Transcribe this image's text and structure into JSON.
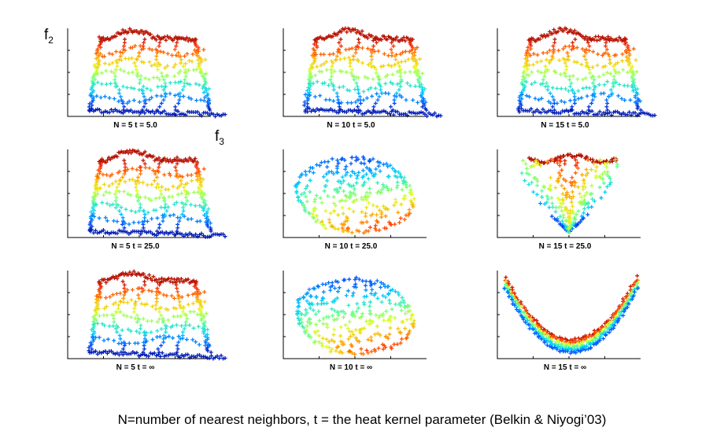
{
  "figure": {
    "ylabel": {
      "base": "f",
      "sub": "2"
    },
    "xlabel": {
      "base": "f",
      "sub": "3"
    },
    "caption": "N=number of nearest neighbors, t = the heat kernel parameter (Belkin & Niyogi’03)"
  },
  "chart_data": [
    {
      "type": "scatter",
      "label": "N = 5     t = 5.0",
      "N": 5,
      "t": "5.0",
      "shape": "grid-lowN"
    },
    {
      "type": "scatter",
      "label": "N = 10    t = 5.0",
      "N": 10,
      "t": "5.0",
      "shape": "grid-lowN"
    },
    {
      "type": "scatter",
      "label": "N = 15    t = 5.0",
      "N": 15,
      "t": "5.0",
      "shape": "grid-lowN"
    },
    {
      "type": "scatter",
      "label": "N = 5     t = 25.0",
      "N": 5,
      "t": "25.0",
      "shape": "grid-lowN"
    },
    {
      "type": "scatter",
      "label": "N = 10    t = 25.0",
      "N": 10,
      "t": "25.0",
      "shape": "blob-midN"
    },
    {
      "type": "scatter",
      "label": "N = 15    t = 25.0",
      "N": 15,
      "t": "25.0",
      "shape": "heart-highN"
    },
    {
      "type": "scatter",
      "label": "N = 5     t = ∞",
      "N": 5,
      "t": "∞",
      "shape": "grid-lowN"
    },
    {
      "type": "scatter",
      "label": "N = 10    t = ∞",
      "N": 10,
      "t": "∞",
      "shape": "blob-midN"
    },
    {
      "type": "scatter",
      "label": "N = 15    t = ∞",
      "N": 15,
      "t": "∞",
      "shape": "arc-highN"
    }
  ],
  "colormap": [
    "#00008f",
    "#0050ff",
    "#00d0ff",
    "#60ff90",
    "#e0ff20",
    "#ffb000",
    "#ff3000",
    "#8f0000"
  ]
}
